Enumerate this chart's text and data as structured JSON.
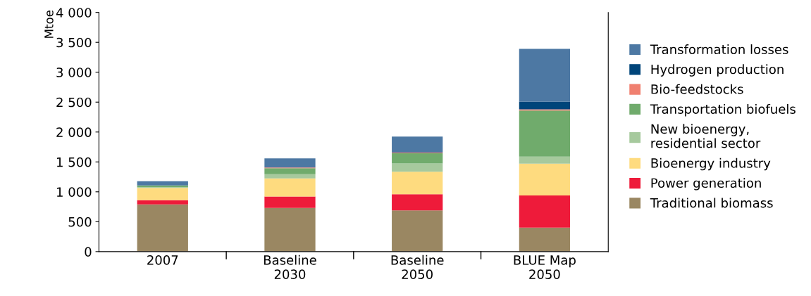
{
  "chart_data": {
    "type": "bar",
    "stacked": true,
    "ylabel": "Mtoe",
    "categories": [
      "2007",
      "Baseline\n2030",
      "Baseline\n2050",
      "BLUE Map\n2050"
    ],
    "ylim": [
      0,
      4000
    ],
    "yticks": [
      {
        "value": 0,
        "label": "0"
      },
      {
        "value": 500,
        "label": "500"
      },
      {
        "value": 1000,
        "label": "1 000"
      },
      {
        "value": 1500,
        "label": "1 500"
      },
      {
        "value": 2000,
        "label": "2 000"
      },
      {
        "value": 2500,
        "label": "2 500"
      },
      {
        "value": 3000,
        "label": "3 000"
      },
      {
        "value": 3500,
        "label": "3 500"
      },
      {
        "value": 4000,
        "label": "4 000"
      }
    ],
    "grid": false,
    "legend": "right",
    "series": [
      {
        "name": "Traditional biomass",
        "color": "#9a8762",
        "values": [
          790,
          730,
          690,
          400
        ]
      },
      {
        "name": "Power generation",
        "color": "#ee1b3a",
        "values": [
          70,
          190,
          270,
          540
        ]
      },
      {
        "name": "Bioenergy industry",
        "color": "#fedb7f",
        "values": [
          205,
          305,
          375,
          530
        ]
      },
      {
        "name": "New bioenergy,\nresidential sector",
        "color": "#a6c99d",
        "values": [
          12,
          70,
          140,
          120
        ]
      },
      {
        "name": "Transportation biofuels",
        "color": "#70ab6c",
        "values": [
          30,
          100,
          170,
          770
        ]
      },
      {
        "name": "Bio-feedstocks",
        "color": "#f08070",
        "values": [
          0,
          10,
          10,
          20
        ]
      },
      {
        "name": "Hydrogen production",
        "color": "#00457a",
        "values": [
          0,
          0,
          0,
          130
        ]
      },
      {
        "name": "Transformation losses",
        "color": "#4d78a3",
        "values": [
          70,
          155,
          270,
          880
        ]
      }
    ]
  }
}
